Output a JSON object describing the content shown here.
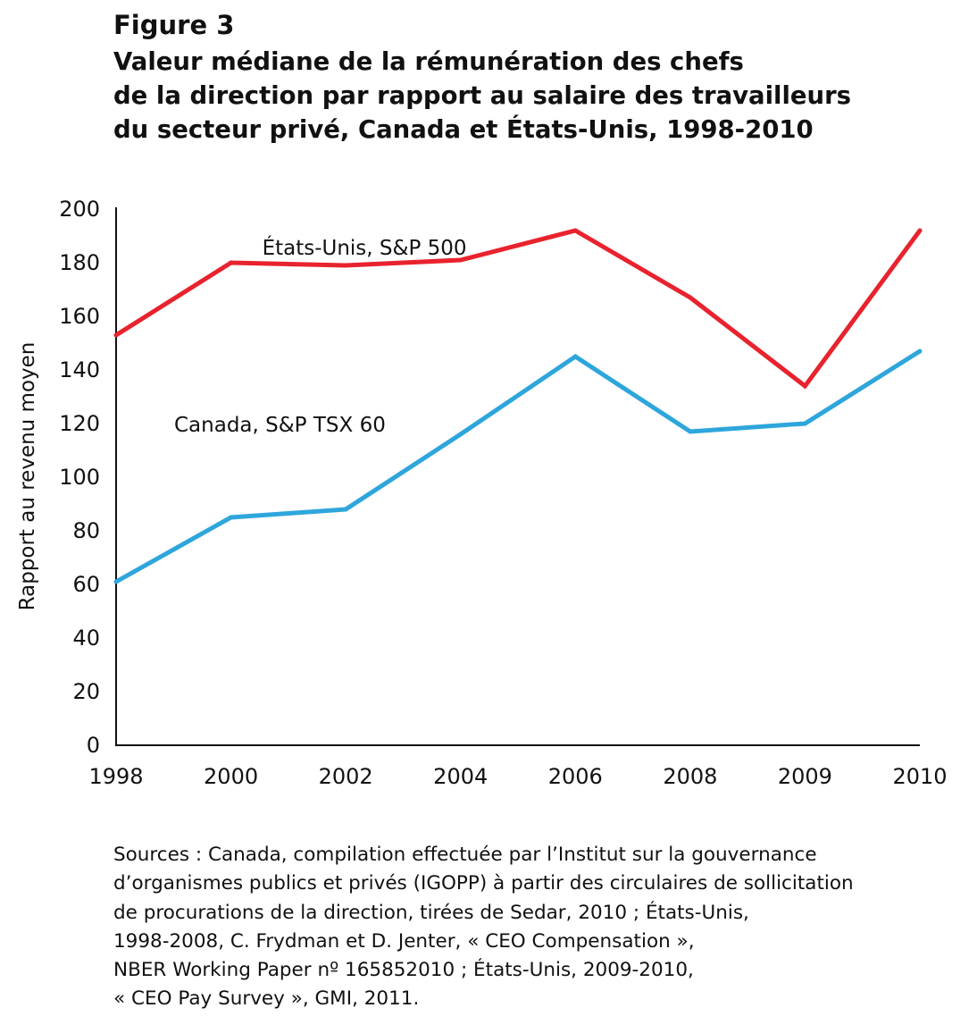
{
  "figure": {
    "label": "Figure 3",
    "title_lines": [
      "Valeur médiane de la rémunération des chefs",
      "de la direction par rapport au salaire des travailleurs",
      "du secteur privé, Canada et États-Unis, 1998-2010"
    ]
  },
  "chart_data": {
    "type": "line",
    "title": "Valeur médiane de la rémunération des chefs de la direction par rapport au salaire des travailleurs du secteur privé, Canada et États-Unis, 1998-2010",
    "xlabel": "",
    "ylabel": "Rapport au revenu moyen",
    "categories": [
      "1998",
      "2000",
      "2002",
      "2004",
      "2006",
      "2008",
      "2009",
      "2010"
    ],
    "ylim": [
      0,
      200
    ],
    "yticks": [
      0,
      20,
      40,
      60,
      80,
      100,
      120,
      140,
      160,
      180,
      200
    ],
    "grid": false,
    "legend": "inline labels",
    "series": [
      {
        "name": "États-Unis, S&P 500",
        "color": "#e8232e",
        "values": [
          153,
          180,
          179,
          181,
          192,
          167,
          134,
          192
        ]
      },
      {
        "name": "Canada, S&P TSX 60",
        "color": "#2ea6dc",
        "values": [
          61,
          85,
          88,
          116,
          145,
          117,
          120,
          147
        ]
      }
    ]
  },
  "sources": {
    "lines": [
      "Sources : Canada, compilation effectuée par l’Institut sur la gouvernance",
      "d’organismes publics et privés (IGOPP) à partir des circulaires de sollicitation",
      "de procurations de la direction, tirées de Sedar, 2010 ; États-Unis,",
      "1998-2008, C. Frydman et D. Jenter, « CEO Compensation »,",
      "NBER Working Paper nº 165852010 ; États-Unis, 2009-2010,",
      "« CEO Pay Survey », GMI, 2011."
    ]
  }
}
